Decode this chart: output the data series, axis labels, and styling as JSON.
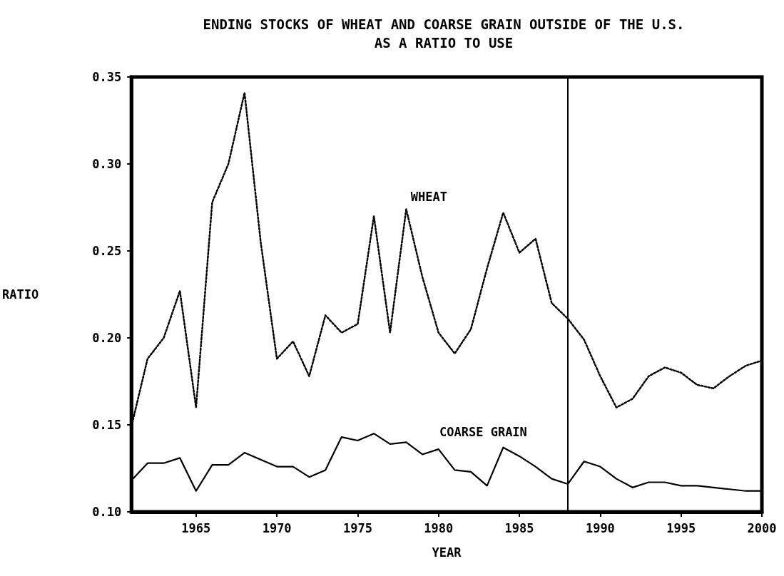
{
  "chart_data": {
    "type": "line",
    "title": "ENDING STOCKS OF WHEAT AND COARSE GRAIN OUTSIDE OF THE U.S.\nAS A RATIO TO USE",
    "xlabel": "YEAR",
    "ylabel": "RATIO",
    "x": [
      1961,
      1962,
      1963,
      1964,
      1965,
      1966,
      1967,
      1968,
      1969,
      1970,
      1971,
      1972,
      1973,
      1974,
      1975,
      1976,
      1977,
      1978,
      1979,
      1980,
      1981,
      1982,
      1983,
      1984,
      1985,
      1986,
      1987,
      1988,
      1989,
      1990,
      1991,
      1992,
      1993,
      1994,
      1995,
      1996,
      1997,
      1998,
      1999,
      2000
    ],
    "series": [
      {
        "name": "WHEAT",
        "color": "#000000",
        "line_style": "dotted",
        "values": [
          0.149,
          0.188,
          0.2,
          0.227,
          0.16,
          0.278,
          0.3,
          0.341,
          0.255,
          0.188,
          0.198,
          0.178,
          0.213,
          0.203,
          0.208,
          0.27,
          0.203,
          0.274,
          0.235,
          0.203,
          0.191,
          0.205,
          0.24,
          0.272,
          0.249,
          0.257,
          0.22,
          0.211,
          0.199,
          0.178,
          0.16,
          0.165,
          0.178,
          0.183,
          0.18,
          0.173,
          0.171,
          0.178,
          0.184,
          0.187
        ]
      },
      {
        "name": "COARSE GRAIN",
        "color": "#000000",
        "line_style": "solid",
        "values": [
          0.118,
          0.128,
          0.128,
          0.131,
          0.112,
          0.127,
          0.127,
          0.134,
          0.13,
          0.126,
          0.126,
          0.12,
          0.124,
          0.143,
          0.141,
          0.145,
          0.139,
          0.14,
          0.133,
          0.136,
          0.124,
          0.123,
          0.115,
          0.137,
          0.132,
          0.126,
          0.119,
          0.116,
          0.129,
          0.126,
          0.119,
          0.114,
          0.117,
          0.117,
          0.115,
          0.115,
          0.114,
          0.113,
          0.112,
          0.112
        ]
      }
    ],
    "xlim": [
      1961,
      2000
    ],
    "xticks": [
      1965,
      1970,
      1975,
      1980,
      1985,
      1990,
      1995,
      2000
    ],
    "ylim": [
      0.1,
      0.35
    ],
    "yticks": [
      {
        "value": 0.1,
        "label": "0.10"
      },
      {
        "value": 0.15,
        "label": "0.15"
      },
      {
        "value": 0.2,
        "label": "0.20"
      },
      {
        "value": 0.25,
        "label": "0.25"
      },
      {
        "value": 0.3,
        "label": "0.30"
      },
      {
        "value": 0.35,
        "label": "0.35"
      }
    ],
    "ref_lines": [
      {
        "axis": "x",
        "value": 1988,
        "color": "#000000",
        "line_style": "solid"
      }
    ],
    "marker": "none",
    "grid": false,
    "legend": false
  }
}
